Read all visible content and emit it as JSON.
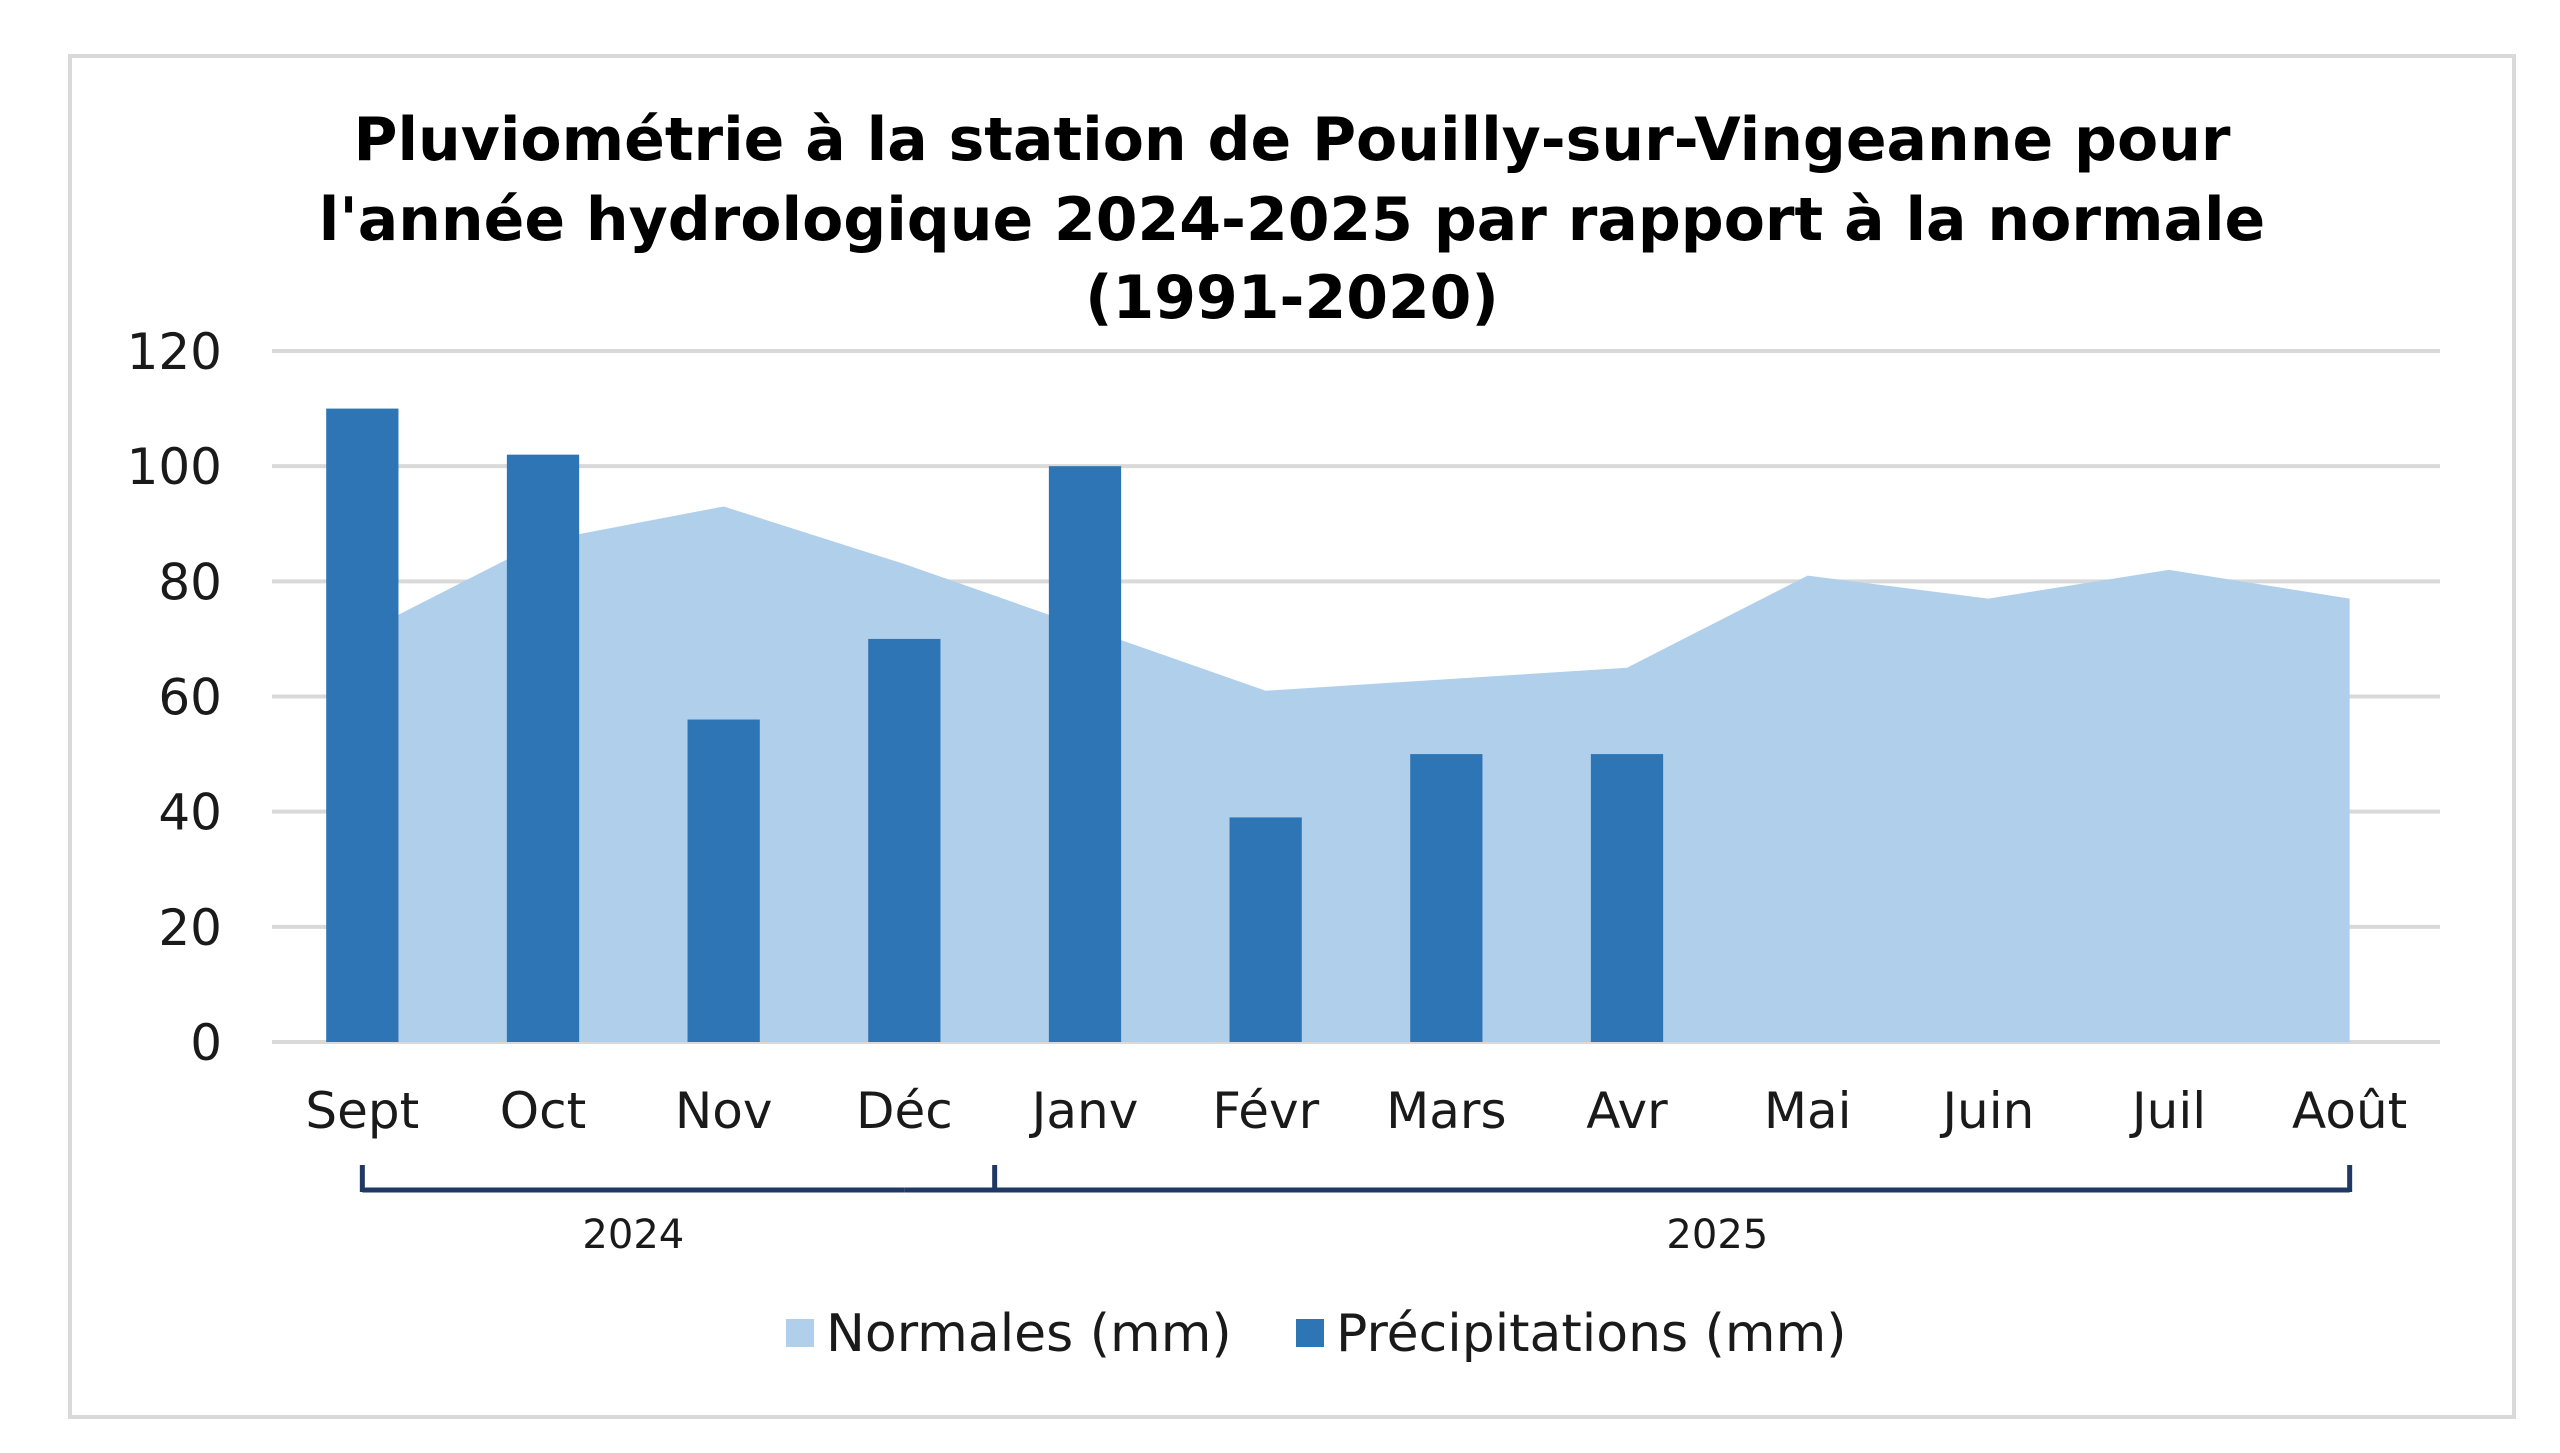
{
  "chart_data": {
    "type": "bar",
    "title_lines": [
      "Pluviométrie à la station de Pouilly-sur-Vingeanne pour",
      "l'année hydrologique 2024-2025 par rapport à la normale",
      "(1991-2020)"
    ],
    "categories": [
      "Sept",
      "Oct",
      "Nov",
      "Déc",
      "Janv",
      "Févr",
      "Mars",
      "Avr",
      "Mai",
      "Juin",
      "Juil",
      "Août"
    ],
    "category_groups": [
      {
        "label": "2024",
        "from": 0,
        "to": 3
      },
      {
        "label": "2025",
        "from": 4,
        "to": 11
      }
    ],
    "series": [
      {
        "name": "Normales (mm)",
        "type": "area",
        "color": "#b0cfeb",
        "values": [
          71,
          87,
          93,
          83,
          72,
          61,
          63,
          65,
          81,
          77,
          82,
          77
        ]
      },
      {
        "name": "Précipitations (mm)",
        "type": "bar",
        "color": "#2e75b6",
        "values": [
          110,
          102,
          56,
          70,
          100,
          39,
          50,
          50,
          null,
          null,
          null,
          null
        ]
      }
    ],
    "ylim": [
      0,
      120
    ],
    "yticks": [
      0,
      20,
      40,
      60,
      80,
      100,
      120
    ],
    "grid": true,
    "legend_position": "bottom",
    "colors": {
      "gridline": "#d9d9d9",
      "bracket": "#203864",
      "frame": "#d9d9d9"
    }
  }
}
